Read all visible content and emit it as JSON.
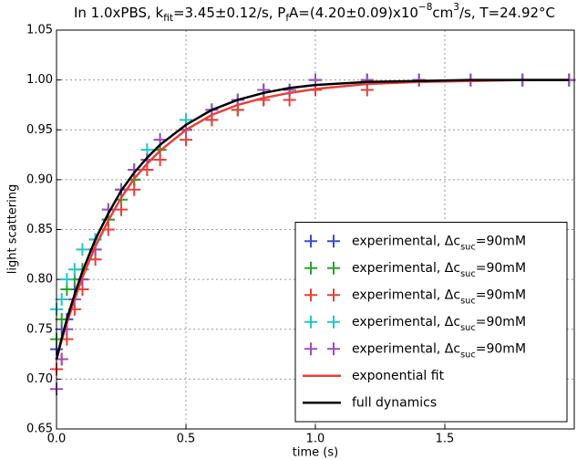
{
  "chart_data": {
    "type": "scatter",
    "title": [
      {
        "text": "In 1.0xPBS, k"
      },
      {
        "text": "fit",
        "shift": "sub"
      },
      {
        "text": "=3.45±0.12/s, P"
      },
      {
        "text": "f",
        "shift": "sub"
      },
      {
        "text": "A=(4.20±0.09)x10"
      },
      {
        "text": "−8",
        "shift": "super"
      },
      {
        "text": "cm"
      },
      {
        "text": "3",
        "shift": "super"
      },
      {
        "text": "/s, T=24.92°C"
      }
    ],
    "x_label": "time (s)",
    "y_label": "light scattering",
    "xlim": [
      0,
      2.0
    ],
    "ylim": [
      0.65,
      1.05
    ],
    "xticks": [
      {
        "value": 0,
        "label": "0.0"
      },
      0.5,
      {
        "value": 1,
        "label": "1.0"
      },
      1.5
    ],
    "yticks": [
      0.65,
      {
        "value": 0.7,
        "label": "0.70"
      },
      0.75,
      {
        "value": 0.8,
        "label": "0.80"
      },
      0.85,
      {
        "value": 0.9,
        "label": "0.90"
      },
      0.95,
      {
        "value": 1,
        "label": "1.00"
      },
      1.05
    ],
    "grid": true,
    "legend": "lower right",
    "x": [
      0,
      0.02,
      0.04,
      0.07,
      0.1,
      0.15,
      0.2,
      0.25,
      0.3,
      0.35,
      0.4,
      0.5,
      0.6,
      0.7,
      0.8,
      0.9,
      1.0,
      1.2,
      1.4,
      1.6,
      1.8,
      1.98
    ],
    "series": [
      {
        "name": [
          {
            "text": "experimental, Δc"
          },
          {
            "text": "suc",
            "shift": "sub"
          },
          {
            "text": "=90mM"
          }
        ],
        "kind": "scatter",
        "color": "#3b4fc4",
        "values": [
          0.73,
          0.75,
          0.76,
          0.79,
          0.8,
          0.84,
          0.86,
          0.89,
          0.9,
          0.92,
          0.93,
          0.95,
          0.97,
          0.98,
          0.99,
          0.99,
          1.0,
          1.0,
          1.0,
          1.0,
          1.0,
          1.0
        ]
      },
      {
        "name": [
          {
            "text": "experimental, Δc"
          },
          {
            "text": "suc",
            "shift": "sub"
          },
          {
            "text": "=90mM"
          }
        ],
        "kind": "scatter",
        "color": "#2ca02c",
        "values": [
          0.74,
          0.76,
          0.79,
          0.8,
          0.81,
          0.83,
          0.86,
          0.88,
          0.9,
          0.92,
          0.93,
          0.95,
          0.96,
          0.97,
          0.98,
          0.99,
          0.99,
          1.0,
          1.0,
          1.0,
          1.0,
          1.0
        ]
      },
      {
        "name": [
          {
            "text": "experimental, Δc"
          },
          {
            "text": "suc",
            "shift": "sub"
          },
          {
            "text": "=90mM"
          }
        ],
        "kind": "scatter",
        "color": "#e8403a",
        "values": [
          0.71,
          0.72,
          0.74,
          0.77,
          0.79,
          0.82,
          0.85,
          0.87,
          0.89,
          0.91,
          0.92,
          0.94,
          0.96,
          0.97,
          0.98,
          0.98,
          0.99,
          0.99,
          1.0,
          1.0,
          1.0,
          1.0
        ]
      },
      {
        "name": [
          {
            "text": "experimental, Δc"
          },
          {
            "text": "suc",
            "shift": "sub"
          },
          {
            "text": "=90mM"
          }
        ],
        "kind": "scatter",
        "color": "#27c4c4",
        "values": [
          0.77,
          0.78,
          0.8,
          0.81,
          0.83,
          0.84,
          0.87,
          0.89,
          0.91,
          0.93,
          0.94,
          0.96,
          0.97,
          0.98,
          0.99,
          0.99,
          1.0,
          1.0,
          1.0,
          1.0,
          1.0,
          1.0
        ]
      },
      {
        "name": [
          {
            "text": "experimental, Δc"
          },
          {
            "text": "suc",
            "shift": "sub"
          },
          {
            "text": "=90mM"
          }
        ],
        "kind": "scatter",
        "color": "#9b4fb8",
        "values": [
          0.69,
          0.72,
          0.75,
          0.78,
          0.8,
          0.83,
          0.87,
          0.89,
          0.91,
          0.92,
          0.94,
          0.95,
          0.97,
          0.98,
          0.99,
          0.99,
          1.0,
          1.0,
          1.0,
          1.0,
          1.0,
          1.0
        ]
      },
      {
        "name": [
          {
            "text": "exponential fit"
          }
        ],
        "kind": "line",
        "color": "#e8403a",
        "values": [
          0.72,
          0.739,
          0.756,
          0.78,
          0.802,
          0.833,
          0.859,
          0.882,
          0.901,
          0.916,
          0.929,
          0.95,
          0.965,
          0.975,
          0.982,
          0.987,
          0.991,
          0.996,
          0.998,
          0.999,
          1.0,
          1.0
        ]
      },
      {
        "name": [
          {
            "text": "full dynamics"
          }
        ],
        "kind": "line",
        "color": "#000000",
        "values": [
          0.72,
          0.741,
          0.76,
          0.785,
          0.808,
          0.84,
          0.866,
          0.889,
          0.907,
          0.922,
          0.935,
          0.955,
          0.97,
          0.98,
          0.987,
          0.992,
          0.995,
          0.998,
          0.999,
          1.0,
          1.0,
          1.0
        ]
      }
    ]
  }
}
